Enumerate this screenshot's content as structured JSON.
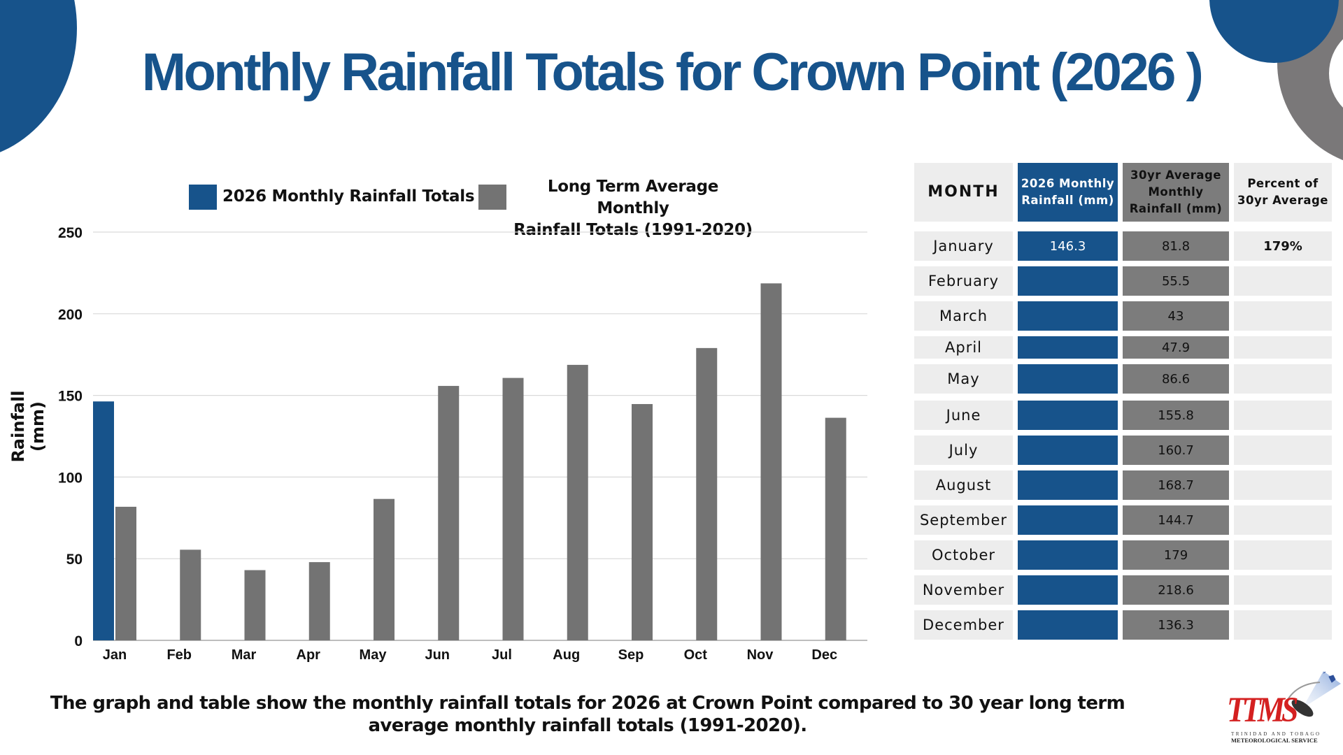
{
  "title": "Monthly Rainfall Totals for Crown Point (2026 )",
  "legend": {
    "series1_label": "2026 Monthly Rainfall Totals",
    "series2_label_line1": "Long Term Average Monthly",
    "series2_label_line2": "Rainfall Totals (1991-2020)"
  },
  "colors": {
    "primary_blue": "#17538b",
    "average_gray": "#737373",
    "table_gray": "#7c7c7c",
    "table_light": "#ededed"
  },
  "chart_data": {
    "type": "bar",
    "title": "",
    "xlabel": "",
    "ylabel": "Rainfall  (mm)",
    "ylim": [
      0,
      250
    ],
    "yticks": [
      0,
      50,
      100,
      150,
      200,
      250
    ],
    "grid": true,
    "legend_position": "top",
    "categories": [
      "Jan",
      "Feb",
      "Mar",
      "Apr",
      "May",
      "Jun",
      "Jul",
      "Aug",
      "Sep",
      "Oct",
      "Nov",
      "Dec"
    ],
    "series": [
      {
        "name": "2026 Monthly Rainfall Totals",
        "color": "#17538b",
        "values": [
          146.3,
          null,
          null,
          null,
          null,
          null,
          null,
          null,
          null,
          null,
          null,
          null
        ]
      },
      {
        "name": "Long Term Average Monthly Rainfall Totals (1991-2020)",
        "color": "#737373",
        "values": [
          81.8,
          55.5,
          43,
          47.9,
          86.6,
          155.8,
          160.7,
          168.7,
          144.7,
          179,
          218.6,
          136.3
        ]
      }
    ]
  },
  "table": {
    "headers": {
      "month": "MONTH",
      "rain2026_line1": "2026 Monthly",
      "rain2026_line2": "Rainfall (mm)",
      "avg_line1": "30yr Average",
      "avg_line2": "Monthly",
      "avg_line3": "Rainfall (mm)",
      "pct_line1": "Percent of",
      "pct_line2": "30yr Average"
    },
    "rows": [
      {
        "month": "January",
        "rain2026": "146.3",
        "avg": "81.8",
        "pct": "179%"
      },
      {
        "month": "February",
        "rain2026": "",
        "avg": "55.5",
        "pct": ""
      },
      {
        "month": "March",
        "rain2026": "",
        "avg": "43",
        "pct": ""
      },
      {
        "month": "April",
        "rain2026": "",
        "avg": "47.9",
        "pct": ""
      },
      {
        "month": "May",
        "rain2026": "",
        "avg": "86.6",
        "pct": ""
      },
      {
        "month": "June",
        "rain2026": "",
        "avg": "155.8",
        "pct": ""
      },
      {
        "month": "July",
        "rain2026": "",
        "avg": "160.7",
        "pct": ""
      },
      {
        "month": "August",
        "rain2026": "",
        "avg": "168.7",
        "pct": ""
      },
      {
        "month": "September",
        "rain2026": "",
        "avg": "144.7",
        "pct": ""
      },
      {
        "month": "October",
        "rain2026": "",
        "avg": "179",
        "pct": ""
      },
      {
        "month": "November",
        "rain2026": "",
        "avg": "218.6",
        "pct": ""
      },
      {
        "month": "December",
        "rain2026": "",
        "avg": "136.3",
        "pct": ""
      }
    ]
  },
  "footer": {
    "line1": "The graph and table show the monthly rainfall totals for 2026 at Crown Point compared to 30 year long term",
    "line2": "average monthly rainfall totals (1991-2020)."
  },
  "logo": {
    "acronym": "TTMS",
    "line1": "TRINIDAD AND TOBAGO",
    "line2": "METEOROLOGICAL SERVICE"
  }
}
